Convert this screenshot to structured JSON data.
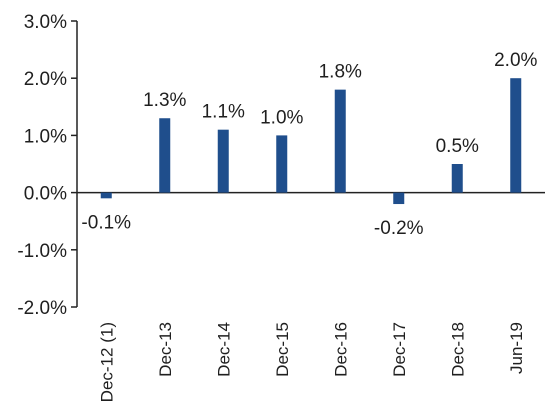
{
  "chart_data": {
    "type": "bar",
    "title": "",
    "xlabel": "",
    "ylabel": "",
    "categories": [
      "Dec-12 (1)",
      "Dec-13",
      "Dec-14",
      "Dec-15",
      "Dec-16",
      "Dec-17",
      "Dec-18",
      "Jun-19"
    ],
    "values": [
      -0.1,
      1.3,
      1.1,
      1.0,
      1.8,
      -0.2,
      0.5,
      2.0
    ],
    "data_labels": [
      "-0.1%",
      "1.3%",
      "1.1%",
      "1.0%",
      "1.8%",
      "-0.2%",
      "0.5%",
      "2.0%"
    ],
    "ylim": [
      -2.0,
      3.0
    ],
    "yticks": [
      3.0,
      2.0,
      1.0,
      0.0,
      -1.0,
      -2.0
    ],
    "ytick_labels": [
      "3.0%",
      "2.0%",
      "1.0%",
      "0.0%",
      "-1.0%",
      "-2.0%"
    ],
    "grid": false,
    "legend": "none",
    "bar_color": "#1f4e8c"
  }
}
